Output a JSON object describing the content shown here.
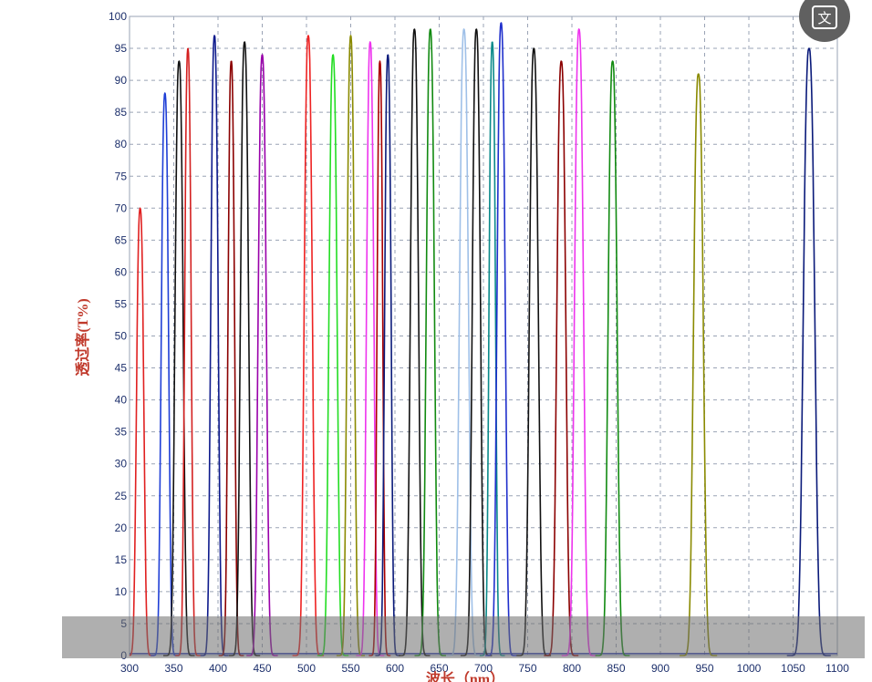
{
  "chart_data": {
    "type": "line",
    "title": "",
    "xlabel": "波长（nm）",
    "ylabel": "透过率(T%)",
    "xlim": [
      300,
      1100
    ],
    "ylim": [
      0,
      100
    ],
    "xticks": [
      300,
      350,
      400,
      450,
      500,
      550,
      600,
      650,
      700,
      750,
      800,
      850,
      900,
      950,
      1000,
      1050,
      1100
    ],
    "yticks": [
      0,
      5,
      10,
      15,
      20,
      25,
      30,
      35,
      40,
      45,
      50,
      55,
      60,
      65,
      70,
      75,
      80,
      85,
      90,
      95,
      100
    ],
    "grid": true,
    "series": [
      {
        "center": 312,
        "peak": 70,
        "fwhm": 9,
        "color": "#e02020"
      },
      {
        "center": 340,
        "peak": 88,
        "fwhm": 9,
        "color": "#1f3fd6"
      },
      {
        "center": 356,
        "peak": 93,
        "fwhm": 10,
        "color": "#111111"
      },
      {
        "center": 366,
        "peak": 95,
        "fwhm": 8,
        "color": "#d42020"
      },
      {
        "center": 396,
        "peak": 97,
        "fwhm": 9,
        "color": "#0d1a8c"
      },
      {
        "center": 415,
        "peak": 93,
        "fwhm": 8,
        "color": "#8b0000"
      },
      {
        "center": 430,
        "peak": 96,
        "fwhm": 10,
        "color": "#111111"
      },
      {
        "center": 450,
        "peak": 94,
        "fwhm": 10,
        "color": "#9900aa"
      },
      {
        "center": 502,
        "peak": 97,
        "fwhm": 10,
        "color": "#ee2222"
      },
      {
        "center": 530,
        "peak": 94,
        "fwhm": 10,
        "color": "#22dd22"
      },
      {
        "center": 550,
        "peak": 97,
        "fwhm": 9,
        "color": "#8a8a00"
      },
      {
        "center": 572,
        "peak": 96,
        "fwhm": 9,
        "color": "#ee33ee"
      },
      {
        "center": 583,
        "peak": 93,
        "fwhm": 7,
        "color": "#aa0000"
      },
      {
        "center": 592,
        "peak": 94,
        "fwhm": 8,
        "color": "#0a1a7a"
      },
      {
        "center": 622,
        "peak": 98,
        "fwhm": 10,
        "color": "#111111"
      },
      {
        "center": 640,
        "peak": 98,
        "fwhm": 10,
        "color": "#118a11"
      },
      {
        "center": 678,
        "peak": 98,
        "fwhm": 11,
        "color": "#9fc0e8"
      },
      {
        "center": 692,
        "peak": 98,
        "fwhm": 10,
        "color": "#111111"
      },
      {
        "center": 710,
        "peak": 96,
        "fwhm": 8,
        "color": "#0a8a8a"
      },
      {
        "center": 720,
        "peak": 99,
        "fwhm": 10,
        "color": "#1f2fcc"
      },
      {
        "center": 757,
        "peak": 95,
        "fwhm": 11,
        "color": "#111111"
      },
      {
        "center": 788,
        "peak": 93,
        "fwhm": 11,
        "color": "#8b0000"
      },
      {
        "center": 808,
        "peak": 98,
        "fwhm": 11,
        "color": "#ee33ee"
      },
      {
        "center": 846,
        "peak": 93,
        "fwhm": 11,
        "color": "#118a11"
      },
      {
        "center": 943,
        "peak": 91,
        "fwhm": 12,
        "color": "#8a8a00"
      },
      {
        "center": 1068,
        "peak": 95,
        "fwhm": 14,
        "color": "#0a1a7a"
      }
    ]
  },
  "ui": {
    "translate_icon_glyph": "文",
    "translate_icon": "translate-icon",
    "overlay_color": "#6e6e6e"
  }
}
